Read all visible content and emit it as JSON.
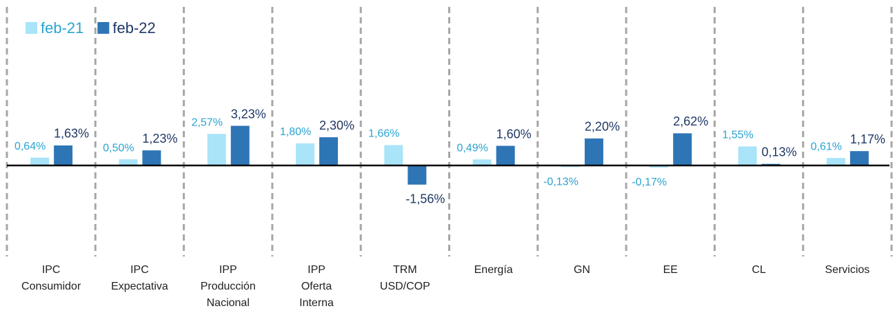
{
  "chart_data": {
    "type": "bar",
    "categories": [
      [
        "IPC",
        "Consumidor"
      ],
      [
        "IPC",
        "Expectativa"
      ],
      [
        "IPP",
        "Producción",
        "Nacional"
      ],
      [
        "IPP",
        "Oferta",
        "Interna"
      ],
      [
        "TRM",
        "USD/COP"
      ],
      [
        "Energía"
      ],
      [
        "GN"
      ],
      [
        "EE"
      ],
      [
        "CL"
      ],
      [
        "Servicios"
      ]
    ],
    "series": [
      {
        "name": "feb-21",
        "color": "#a9e4f8",
        "label_color": "#2aa3d2",
        "values": [
          0.64,
          0.5,
          2.57,
          1.8,
          1.66,
          0.49,
          -0.13,
          -0.17,
          1.55,
          0.61
        ],
        "value_labels": [
          "0,64%",
          "0,50%",
          "2,57%",
          "1,80%",
          "1,66%",
          "0,49%",
          "-0,13%",
          "-0,17%",
          "1,55%",
          "0,61%"
        ]
      },
      {
        "name": "feb-22",
        "color": "#2e75b6",
        "label_color": "#1f3864",
        "values": [
          1.63,
          1.23,
          3.23,
          2.3,
          -1.56,
          1.6,
          2.2,
          2.62,
          0.13,
          1.17
        ],
        "value_labels": [
          "1,63%",
          "1,23%",
          "3,23%",
          "2,30%",
          "-1,56%",
          "1,60%",
          "2,20%",
          "2,62%",
          "0,13%",
          "1,17%"
        ]
      }
    ],
    "legend": "top-left"
  }
}
